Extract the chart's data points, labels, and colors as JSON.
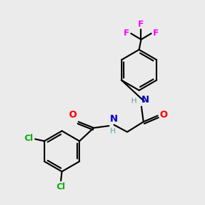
{
  "bg_color": "#ebebeb",
  "bond_color": "#000000",
  "N_color": "#0000cd",
  "O_color": "#ff0000",
  "Cl_color": "#00aa00",
  "F_color": "#ff00ff",
  "H_color": "#5f9ea0",
  "line_width": 1.6,
  "figsize": [
    3.0,
    3.0
  ],
  "dpi": 100,
  "xlim": [
    0,
    10
  ],
  "ylim": [
    0,
    10
  ]
}
